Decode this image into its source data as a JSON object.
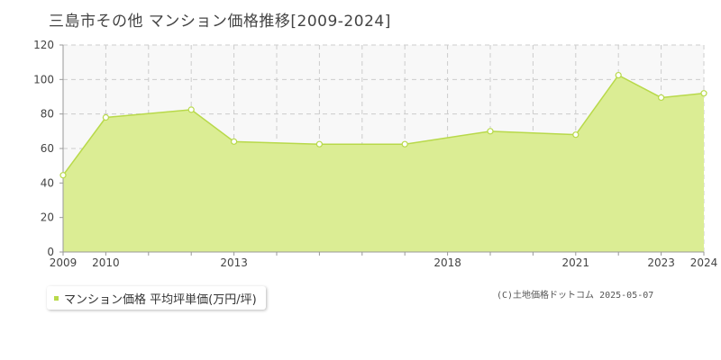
{
  "title": "三島市その他 マンション価格推移[2009-2024]",
  "legend": {
    "label": "マンション価格 平均坪単価(万円/坪)",
    "color": "#b8d94a"
  },
  "copyright": "(C)土地価格ドットコム 2025-05-07",
  "chart_data": {
    "type": "area",
    "title": "三島市その他 マンション価格推移[2009-2024]",
    "x": [
      2009,
      2010,
      2011,
      2012,
      2013,
      2014,
      2015,
      2016,
      2017,
      2018,
      2019,
      2020,
      2021,
      2022,
      2023,
      2024
    ],
    "x_tick_labels": [
      2009,
      2010,
      2013,
      2018,
      2021,
      2023,
      2024
    ],
    "series": [
      {
        "name": "マンション価格 平均坪単価(万円/坪)",
        "points": [
          {
            "x": 2009,
            "y": 44.5
          },
          {
            "x": 2010,
            "y": 78
          },
          {
            "x": 2012,
            "y": 82.5
          },
          {
            "x": 2013,
            "y": 64
          },
          {
            "x": 2015,
            "y": 62.5
          },
          {
            "x": 2017,
            "y": 62.5
          },
          {
            "x": 2019,
            "y": 70
          },
          {
            "x": 2021,
            "y": 68
          },
          {
            "x": 2022,
            "y": 102.5
          },
          {
            "x": 2023,
            "y": 89.5
          },
          {
            "x": 2024,
            "y": 92
          }
        ]
      }
    ],
    "ylim": [
      0,
      120
    ],
    "y_ticks": [
      0,
      20,
      40,
      60,
      80,
      100,
      120
    ],
    "xlim": [
      2009,
      2024
    ],
    "grid": true,
    "colors": {
      "fill": "#dbed94",
      "line": "#b8d94a",
      "grid": "#cccccc",
      "axis": "#999999",
      "plot_bg": "#f8f8f8"
    }
  }
}
